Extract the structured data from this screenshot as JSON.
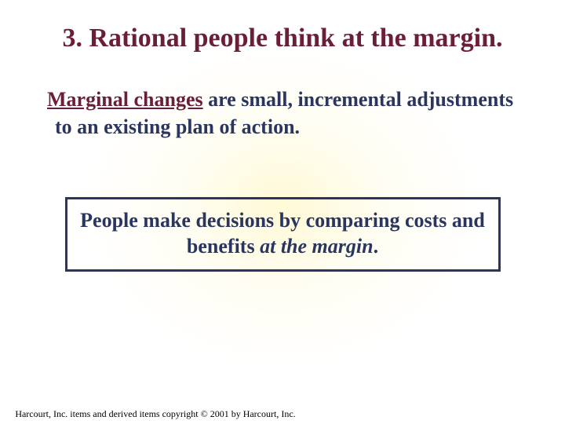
{
  "colors": {
    "title": "#6b1e3a",
    "body": "#2a3660",
    "term": "#6b1e3a",
    "callout_border": "#2a3660",
    "callout_text": "#2a3660"
  },
  "title": "3. Rational people think at the margin.",
  "definition": {
    "term": "Marginal changes",
    "rest": " are small, incremental adjustments to an existing plan of action."
  },
  "callout": {
    "prefix": "People make decisions by comparing costs and benefits ",
    "emphasis": "at the margin",
    "suffix": "."
  },
  "footer": "Harcourt, Inc. items and derived items copyright © 2001 by Harcourt, Inc."
}
